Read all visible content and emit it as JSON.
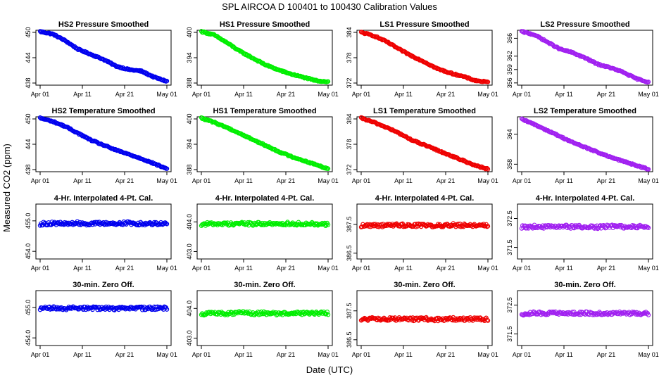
{
  "figure": {
    "title": "SPL   AIRCOA D   100401 to 100430   Calibration Values",
    "xlabel": "Date (UTC)",
    "ylabel": "Measured CO2 (ppm)"
  },
  "colors": {
    "HS2": "#0000ee",
    "HS1": "#00ee00",
    "LS1": "#ee0000",
    "LS2": "#a020f0"
  },
  "chart_data": [
    {
      "type": "scatter",
      "title": "HS2 Pressure Smoothed",
      "row": 0,
      "col": 0,
      "color_key": "HS2",
      "x_ticks": [
        "Apr 01",
        "Apr 11",
        "Apr 21",
        "May 01"
      ],
      "xlim": [
        "2010-04-01",
        "2010-05-01"
      ],
      "y_ticks": [
        438,
        444,
        450
      ],
      "ylim": [
        437.5,
        450.5
      ],
      "series": {
        "x": [
          "2010-04-01",
          "2010-04-04",
          "2010-04-07",
          "2010-04-10",
          "2010-04-13",
          "2010-04-16",
          "2010-04-19",
          "2010-04-22",
          "2010-04-25",
          "2010-04-28",
          "2010-05-01"
        ],
        "y": [
          450.2,
          449.6,
          448.0,
          446.0,
          444.8,
          443.6,
          442.0,
          441.2,
          440.8,
          439.4,
          438.4
        ]
      }
    },
    {
      "type": "scatter",
      "title": "HS1 Pressure Smoothed",
      "row": 0,
      "col": 1,
      "color_key": "HS1",
      "x_ticks": [
        "Apr 01",
        "Apr 11",
        "Apr 21",
        "May 01"
      ],
      "xlim": [
        "2010-04-01",
        "2010-05-01"
      ],
      "y_ticks": [
        388,
        394,
        400
      ],
      "ylim": [
        387.5,
        400.5
      ],
      "series": {
        "x": [
          "2010-04-01",
          "2010-04-04",
          "2010-04-07",
          "2010-04-10",
          "2010-04-13",
          "2010-04-16",
          "2010-04-19",
          "2010-04-22",
          "2010-04-25",
          "2010-04-28",
          "2010-05-01"
        ],
        "y": [
          400.2,
          399.4,
          397.6,
          395.6,
          394.0,
          392.4,
          391.2,
          390.2,
          389.4,
          388.6,
          388.3
        ]
      }
    },
    {
      "type": "scatter",
      "title": "LS1 Pressure Smoothed",
      "row": 0,
      "col": 2,
      "color_key": "LS1",
      "x_ticks": [
        "Apr 01",
        "Apr 11",
        "Apr 21",
        "May 01"
      ],
      "xlim": [
        "2010-04-01",
        "2010-05-01"
      ],
      "y_ticks": [
        372,
        378,
        384
      ],
      "ylim": [
        371.5,
        384.5
      ],
      "series": {
        "x": [
          "2010-04-01",
          "2010-04-04",
          "2010-04-07",
          "2010-04-10",
          "2010-04-13",
          "2010-04-16",
          "2010-04-19",
          "2010-04-22",
          "2010-04-25",
          "2010-04-28",
          "2010-05-01"
        ],
        "y": [
          384.0,
          383.2,
          381.8,
          380.0,
          378.4,
          377.0,
          375.4,
          374.4,
          373.6,
          372.6,
          372.2
        ]
      }
    },
    {
      "type": "scatter",
      "title": "LS2 Pressure Smoothed",
      "row": 0,
      "col": 3,
      "color_key": "LS2",
      "x_ticks": [
        "Apr 01",
        "Apr 11",
        "Apr 21",
        "May 01"
      ],
      "xlim": [
        "2010-04-01",
        "2010-05-01"
      ],
      "y_ticks": [
        356,
        359,
        362,
        366
      ],
      "y_tick_labels": [
        "356",
        "359",
        "362",
        "366"
      ],
      "ylim": [
        355.5,
        367.8
      ],
      "series": {
        "x": [
          "2010-04-01",
          "2010-04-04",
          "2010-04-07",
          "2010-04-10",
          "2010-04-13",
          "2010-04-16",
          "2010-04-19",
          "2010-04-22",
          "2010-04-25",
          "2010-04-28",
          "2010-05-01"
        ],
        "y": [
          367.5,
          366.8,
          365.2,
          363.6,
          362.8,
          361.6,
          360.2,
          359.4,
          358.4,
          357.0,
          356.2
        ]
      }
    },
    {
      "type": "scatter",
      "title": "HS2 Temperature Smoothed",
      "row": 1,
      "col": 0,
      "color_key": "HS2",
      "x_ticks": [
        "Apr 01",
        "Apr 11",
        "Apr 21",
        "May 01"
      ],
      "xlim": [
        "2010-04-01",
        "2010-05-01"
      ],
      "y_ticks": [
        438,
        444,
        450
      ],
      "ylim": [
        437.5,
        450.5
      ],
      "series": {
        "x": [
          "2010-04-01",
          "2010-04-04",
          "2010-04-07",
          "2010-04-10",
          "2010-04-13",
          "2010-04-16",
          "2010-04-19",
          "2010-04-22",
          "2010-04-25",
          "2010-04-28",
          "2010-05-01"
        ],
        "y": [
          450.2,
          449.4,
          448.2,
          446.6,
          445.0,
          443.8,
          442.6,
          441.6,
          440.6,
          439.4,
          438.2
        ]
      }
    },
    {
      "type": "scatter",
      "title": "HS1 Temperature Smoothed",
      "row": 1,
      "col": 1,
      "color_key": "HS1",
      "x_ticks": [
        "Apr 01",
        "Apr 11",
        "Apr 21",
        "May 01"
      ],
      "xlim": [
        "2010-04-01",
        "2010-05-01"
      ],
      "y_ticks": [
        388,
        394,
        400
      ],
      "ylim": [
        387.5,
        400.5
      ],
      "series": {
        "x": [
          "2010-04-01",
          "2010-04-04",
          "2010-04-07",
          "2010-04-10",
          "2010-04-13",
          "2010-04-16",
          "2010-04-19",
          "2010-04-22",
          "2010-04-25",
          "2010-04-28",
          "2010-05-01"
        ],
        "y": [
          400.2,
          399.2,
          398.0,
          396.6,
          395.2,
          393.8,
          392.4,
          391.2,
          390.2,
          389.2,
          388.2
        ]
      }
    },
    {
      "type": "scatter",
      "title": "LS1 Temperature Smoothed",
      "row": 1,
      "col": 2,
      "color_key": "LS1",
      "x_ticks": [
        "Apr 01",
        "Apr 11",
        "Apr 21",
        "May 01"
      ],
      "xlim": [
        "2010-04-01",
        "2010-05-01"
      ],
      "y_ticks": [
        372,
        378,
        384
      ],
      "ylim": [
        371.5,
        384.5
      ],
      "series": {
        "x": [
          "2010-04-01",
          "2010-04-04",
          "2010-04-07",
          "2010-04-10",
          "2010-04-13",
          "2010-04-16",
          "2010-04-19",
          "2010-04-22",
          "2010-04-25",
          "2010-04-28",
          "2010-05-01"
        ],
        "y": [
          384.2,
          383.2,
          382.0,
          380.6,
          379.0,
          377.8,
          376.6,
          375.4,
          374.2,
          373.0,
          372.1
        ]
      }
    },
    {
      "type": "scatter",
      "title": "LS2 Temperature Smoothed",
      "row": 1,
      "col": 3,
      "color_key": "LS2",
      "x_ticks": [
        "Apr 01",
        "Apr 11",
        "Apr 21",
        "May 01"
      ],
      "xlim": [
        "2010-04-01",
        "2010-05-01"
      ],
      "y_ticks": [
        358,
        364
      ],
      "ylim": [
        356.5,
        367.5
      ],
      "series": {
        "x": [
          "2010-04-01",
          "2010-04-04",
          "2010-04-07",
          "2010-04-10",
          "2010-04-13",
          "2010-04-16",
          "2010-04-19",
          "2010-04-22",
          "2010-04-25",
          "2010-04-28",
          "2010-05-01"
        ],
        "y": [
          367.0,
          366.0,
          364.8,
          363.6,
          362.4,
          361.4,
          360.4,
          359.4,
          358.6,
          357.8,
          357.0
        ]
      }
    },
    {
      "type": "scatter",
      "title": "4-Hr. Interpolated 4-Pt. Cal.",
      "row": 2,
      "col": 0,
      "color_key": "HS2",
      "x_ticks": [
        "Apr 01",
        "Apr 11",
        "Apr 21",
        "May 01"
      ],
      "xlim": [
        "2010-04-01",
        "2010-05-01"
      ],
      "y_ticks": [
        454.0,
        455.0
      ],
      "y_tick_labels": [
        "454.0",
        "455.0"
      ],
      "ylim": [
        453.75,
        455.55
      ],
      "series": {
        "x": [
          "2010-04-01",
          "2010-04-04",
          "2010-04-07",
          "2010-04-10",
          "2010-04-13",
          "2010-04-16",
          "2010-04-19",
          "2010-04-22",
          "2010-04-25",
          "2010-04-28",
          "2010-05-01"
        ],
        "y": [
          454.9,
          454.92,
          454.9,
          454.93,
          454.9,
          454.92,
          454.91,
          454.93,
          454.9,
          454.92,
          454.91
        ]
      }
    },
    {
      "type": "scatter",
      "title": "4-Hr. Interpolated 4-Pt. Cal.",
      "row": 2,
      "col": 1,
      "color_key": "HS1",
      "x_ticks": [
        "Apr 01",
        "Apr 11",
        "Apr 21",
        "May 01"
      ],
      "xlim": [
        "2010-04-01",
        "2010-05-01"
      ],
      "y_ticks": [
        403.0,
        404.0
      ],
      "y_tick_labels": [
        "403.0",
        "404.0"
      ],
      "ylim": [
        402.75,
        404.6
      ],
      "series": {
        "x": [
          "2010-04-01",
          "2010-04-04",
          "2010-04-07",
          "2010-04-10",
          "2010-04-13",
          "2010-04-16",
          "2010-04-19",
          "2010-04-22",
          "2010-04-25",
          "2010-04-28",
          "2010-05-01"
        ],
        "y": [
          403.92,
          403.94,
          403.93,
          403.95,
          403.93,
          403.94,
          403.92,
          403.95,
          403.93,
          403.94,
          403.92
        ]
      }
    },
    {
      "type": "scatter",
      "title": "4-Hr. Interpolated 4-Pt. Cal.",
      "row": 2,
      "col": 2,
      "color_key": "LS1",
      "x_ticks": [
        "Apr 01",
        "Apr 11",
        "Apr 21",
        "May 01"
      ],
      "xlim": [
        "2010-04-01",
        "2010-05-01"
      ],
      "y_ticks": [
        386.5,
        387.5
      ],
      "y_tick_labels": [
        "386.5",
        "387.5"
      ],
      "ylim": [
        386.3,
        388.2
      ],
      "series": {
        "x": [
          "2010-04-01",
          "2010-04-04",
          "2010-04-07",
          "2010-04-10",
          "2010-04-13",
          "2010-04-16",
          "2010-04-19",
          "2010-04-22",
          "2010-04-25",
          "2010-04-28",
          "2010-05-01"
        ],
        "y": [
          387.45,
          387.47,
          387.46,
          387.48,
          387.46,
          387.47,
          387.45,
          387.48,
          387.46,
          387.47,
          387.46
        ]
      }
    },
    {
      "type": "scatter",
      "title": "4-Hr. Interpolated 4-Pt. Cal.",
      "row": 2,
      "col": 3,
      "color_key": "LS2",
      "x_ticks": [
        "Apr 01",
        "Apr 11",
        "Apr 21",
        "May 01"
      ],
      "xlim": [
        "2010-04-01",
        "2010-05-01"
      ],
      "y_ticks": [
        371.5,
        372.5
      ],
      "y_tick_labels": [
        "371.5",
        "372.5"
      ],
      "ylim": [
        371.1,
        373.0
      ],
      "series": {
        "x": [
          "2010-04-01",
          "2010-04-04",
          "2010-04-07",
          "2010-04-10",
          "2010-04-13",
          "2010-04-16",
          "2010-04-19",
          "2010-04-22",
          "2010-04-25",
          "2010-04-28",
          "2010-05-01"
        ],
        "y": [
          372.2,
          372.22,
          372.21,
          372.23,
          372.21,
          372.22,
          372.2,
          372.23,
          372.21,
          372.22,
          372.21
        ]
      }
    },
    {
      "type": "scatter",
      "title": "30-min. Zero Off.",
      "row": 3,
      "col": 0,
      "color_key": "HS2",
      "x_ticks": [
        "Apr 01",
        "Apr 11",
        "Apr 21",
        "May 01"
      ],
      "xlim": [
        "2010-04-01",
        "2010-05-01"
      ],
      "y_ticks": [
        454.0,
        455.0
      ],
      "y_tick_labels": [
        "454.0",
        "455.0"
      ],
      "ylim": [
        453.75,
        455.55
      ],
      "series": {
        "x": [
          "2010-04-01",
          "2010-04-04",
          "2010-04-07",
          "2010-04-10",
          "2010-04-13",
          "2010-04-16",
          "2010-04-19",
          "2010-04-22",
          "2010-04-25",
          "2010-04-28",
          "2010-05-01"
        ],
        "y": [
          454.96,
          454.98,
          454.97,
          454.99,
          454.97,
          454.98,
          454.96,
          454.99,
          454.97,
          454.98,
          454.97
        ]
      }
    },
    {
      "type": "scatter",
      "title": "30-min. Zero Off.",
      "row": 3,
      "col": 1,
      "color_key": "HS1",
      "x_ticks": [
        "Apr 01",
        "Apr 11",
        "Apr 21",
        "May 01"
      ],
      "xlim": [
        "2010-04-01",
        "2010-05-01"
      ],
      "y_ticks": [
        403.0,
        404.0
      ],
      "y_tick_labels": [
        "403.0",
        "404.0"
      ],
      "ylim": [
        402.75,
        404.6
      ],
      "series": {
        "x": [
          "2010-04-01",
          "2010-04-04",
          "2010-04-07",
          "2010-04-10",
          "2010-04-13",
          "2010-04-16",
          "2010-04-19",
          "2010-04-22",
          "2010-04-25",
          "2010-04-28",
          "2010-05-01"
        ],
        "y": [
          403.82,
          403.84,
          403.83,
          403.85,
          403.83,
          403.84,
          403.82,
          403.85,
          403.83,
          403.84,
          403.83
        ]
      }
    },
    {
      "type": "scatter",
      "title": "30-min. Zero Off.",
      "row": 3,
      "col": 2,
      "color_key": "LS1",
      "x_ticks": [
        "Apr 01",
        "Apr 11",
        "Apr 21",
        "May 01"
      ],
      "xlim": [
        "2010-04-01",
        "2010-05-01"
      ],
      "y_ticks": [
        386.5,
        387.5
      ],
      "y_tick_labels": [
        "386.5",
        "387.5"
      ],
      "ylim": [
        386.3,
        388.2
      ],
      "series": {
        "x": [
          "2010-04-01",
          "2010-04-04",
          "2010-04-07",
          "2010-04-10",
          "2010-04-13",
          "2010-04-16",
          "2010-04-19",
          "2010-04-22",
          "2010-04-25",
          "2010-04-28",
          "2010-05-01"
        ],
        "y": [
          387.2,
          387.22,
          387.21,
          387.23,
          387.21,
          387.22,
          387.2,
          387.23,
          387.21,
          387.22,
          387.21
        ]
      }
    },
    {
      "type": "scatter",
      "title": "30-min. Zero Off.",
      "row": 3,
      "col": 3,
      "color_key": "LS2",
      "x_ticks": [
        "Apr 01",
        "Apr 11",
        "Apr 21",
        "May 01"
      ],
      "xlim": [
        "2010-04-01",
        "2010-05-01"
      ],
      "y_ticks": [
        371.5,
        372.5
      ],
      "y_tick_labels": [
        "371.5",
        "372.5"
      ],
      "ylim": [
        371.1,
        373.0
      ],
      "series": {
        "x": [
          "2010-04-01",
          "2010-04-04",
          "2010-04-07",
          "2010-04-10",
          "2010-04-13",
          "2010-04-16",
          "2010-04-19",
          "2010-04-22",
          "2010-04-25",
          "2010-04-28",
          "2010-05-01"
        ],
        "y": [
          372.2,
          372.22,
          372.21,
          372.23,
          372.21,
          372.22,
          372.2,
          372.23,
          372.21,
          372.22,
          372.21
        ]
      }
    }
  ]
}
